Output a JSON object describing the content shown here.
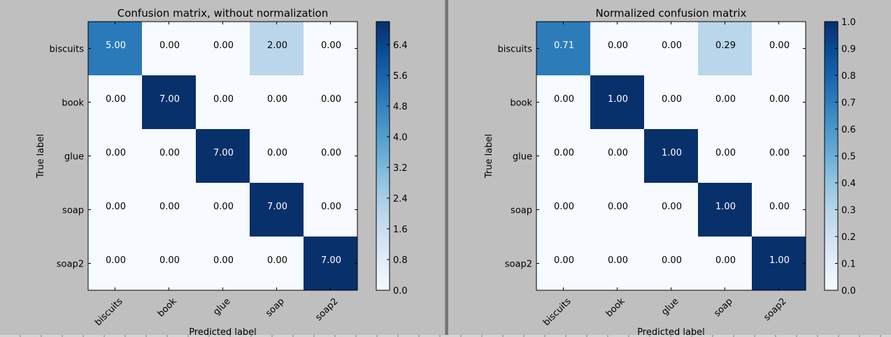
{
  "chart_data": [
    {
      "type": "heatmap",
      "title": "Confusion matrix, without normalization",
      "xlabel": "Predicted label",
      "ylabel": "True label",
      "x_categories": [
        "biscuits",
        "book",
        "glue",
        "soap",
        "soap2"
      ],
      "y_categories": [
        "biscuits",
        "book",
        "glue",
        "soap",
        "soap2"
      ],
      "values": [
        [
          "5.00",
          "0.00",
          "0.00",
          "2.00",
          "0.00"
        ],
        [
          "0.00",
          "7.00",
          "0.00",
          "0.00",
          "0.00"
        ],
        [
          "0.00",
          "0.00",
          "7.00",
          "0.00",
          "0.00"
        ],
        [
          "0.00",
          "0.00",
          "0.00",
          "7.00",
          "0.00"
        ],
        [
          "0.00",
          "0.00",
          "0.00",
          "0.00",
          "7.00"
        ]
      ],
      "vmin": 0,
      "vmax": 7,
      "colormap": "Blues",
      "colorbar_ticks": [
        "0.0",
        "0.8",
        "1.6",
        "2.4",
        "3.2",
        "4.0",
        "4.8",
        "5.6",
        "6.4"
      ]
    },
    {
      "type": "heatmap",
      "title": "Normalized confusion matrix",
      "xlabel": "Predicted label",
      "ylabel": "True label",
      "x_categories": [
        "biscuits",
        "book",
        "glue",
        "soap",
        "soap2"
      ],
      "y_categories": [
        "biscuits",
        "book",
        "glue",
        "soap",
        "soap2"
      ],
      "values": [
        [
          "0.71",
          "0.00",
          "0.00",
          "0.29",
          "0.00"
        ],
        [
          "0.00",
          "1.00",
          "0.00",
          "0.00",
          "0.00"
        ],
        [
          "0.00",
          "0.00",
          "1.00",
          "0.00",
          "0.00"
        ],
        [
          "0.00",
          "0.00",
          "0.00",
          "1.00",
          "0.00"
        ],
        [
          "0.00",
          "0.00",
          "0.00",
          "0.00",
          "1.00"
        ]
      ],
      "vmin": 0,
      "vmax": 1,
      "colormap": "Blues",
      "colorbar_ticks": [
        "0.0",
        "0.1",
        "0.2",
        "0.3",
        "0.4",
        "0.5",
        "0.6",
        "0.7",
        "0.8",
        "0.9",
        "1.0"
      ]
    }
  ],
  "colors": {
    "figure_background": "#bfbfbf",
    "text": "#000000",
    "cell_light_text": "#ffffff"
  }
}
